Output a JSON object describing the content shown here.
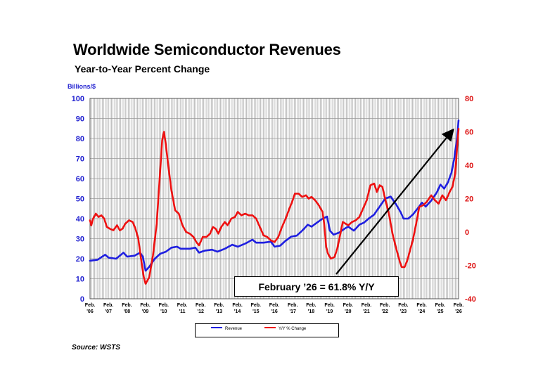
{
  "header": {
    "title": "Worldwide Semiconductor Revenues",
    "subtitle": "Year-to-Year Percent Change",
    "unit": "Billions/$"
  },
  "source": "Source: WSTS",
  "callout": "February ’26 = 61.8% Y/Y",
  "legend": {
    "revenue": "Revenue",
    "yoy": "Y/Y % Change"
  },
  "colors": {
    "revenue": "#1f1fe0",
    "yoy": "#ee1111",
    "grid": "#9a9a9a",
    "left_axis": "#1f1fd0",
    "right_axis": "#dd1111"
  },
  "chart_data": {
    "type": "line",
    "title": "Worldwide Semiconductor Revenues",
    "subtitle": "Year-to-Year Percent Change",
    "ylabel_left": "Billions/$",
    "ylim_left": [
      0,
      100
    ],
    "yticks_left": [
      "0",
      "10",
      "20",
      "30",
      "40",
      "50",
      "60",
      "70",
      "80",
      "90",
      "100"
    ],
    "ylim_right": [
      -40,
      80
    ],
    "yticks_right": [
      "-40",
      "-20",
      "0",
      "20",
      "40",
      "60",
      "80"
    ],
    "x_start": 2006.083,
    "x_end": 2026.083,
    "x_ticks": [
      "Feb.|'06",
      "Feb.|'07",
      "Feb.|'08",
      "Feb.|'09",
      "Feb.|'10",
      "Feb.|'11",
      "Feb.|'12",
      "Feb.|'13",
      "Feb.|'14",
      "Feb.|'15",
      "Feb.|'16",
      "Feb.|'17",
      "Feb.|'18",
      "Feb.|'19",
      "Feb.|'20",
      "Feb.|'21",
      "Feb.|'22",
      "Feb.|'23",
      "Feb.|'24",
      "Feb.|'25",
      "Feb.|'26"
    ],
    "series": [
      {
        "name": "Revenue",
        "axis": "left",
        "points": [
          [
            2006.08,
            19
          ],
          [
            2006.5,
            19.5
          ],
          [
            2006.9,
            22
          ],
          [
            2007.1,
            20.5
          ],
          [
            2007.5,
            20
          ],
          [
            2007.9,
            23
          ],
          [
            2008.1,
            21
          ],
          [
            2008.5,
            21.5
          ],
          [
            2008.8,
            23
          ],
          [
            2008.95,
            21
          ],
          [
            2009.1,
            14
          ],
          [
            2009.3,
            16
          ],
          [
            2009.6,
            20
          ],
          [
            2009.9,
            22.5
          ],
          [
            2010.2,
            23.5
          ],
          [
            2010.5,
            25.5
          ],
          [
            2010.8,
            26
          ],
          [
            2011.0,
            25
          ],
          [
            2011.5,
            25
          ],
          [
            2011.8,
            25.5
          ],
          [
            2012.0,
            23
          ],
          [
            2012.3,
            24
          ],
          [
            2012.7,
            24.5
          ],
          [
            2013.0,
            23.5
          ],
          [
            2013.4,
            25
          ],
          [
            2013.8,
            27
          ],
          [
            2014.1,
            26
          ],
          [
            2014.5,
            27.5
          ],
          [
            2014.9,
            29.5
          ],
          [
            2015.1,
            28
          ],
          [
            2015.5,
            28
          ],
          [
            2015.9,
            28.5
          ],
          [
            2016.1,
            26
          ],
          [
            2016.4,
            26.5
          ],
          [
            2016.7,
            29
          ],
          [
            2017.0,
            31
          ],
          [
            2017.3,
            31.5
          ],
          [
            2017.6,
            34
          ],
          [
            2017.9,
            37
          ],
          [
            2018.1,
            36
          ],
          [
            2018.4,
            38
          ],
          [
            2018.7,
            40
          ],
          [
            2018.95,
            41
          ],
          [
            2019.1,
            34
          ],
          [
            2019.3,
            32
          ],
          [
            2019.6,
            33
          ],
          [
            2019.9,
            35
          ],
          [
            2020.1,
            36
          ],
          [
            2020.4,
            34
          ],
          [
            2020.7,
            37
          ],
          [
            2020.95,
            38
          ],
          [
            2021.2,
            40
          ],
          [
            2021.5,
            42
          ],
          [
            2021.8,
            46
          ],
          [
            2022.1,
            50
          ],
          [
            2022.4,
            51
          ],
          [
            2022.7,
            47
          ],
          [
            2022.95,
            43
          ],
          [
            2023.1,
            40
          ],
          [
            2023.35,
            40
          ],
          [
            2023.6,
            42
          ],
          [
            2023.9,
            45.5
          ],
          [
            2024.1,
            48
          ],
          [
            2024.3,
            46
          ],
          [
            2024.6,
            49
          ],
          [
            2024.9,
            53
          ],
          [
            2025.1,
            57
          ],
          [
            2025.3,
            55
          ],
          [
            2025.5,
            58
          ],
          [
            2025.7,
            63
          ],
          [
            2025.85,
            70
          ],
          [
            2026.0,
            80
          ],
          [
            2026.083,
            89
          ]
        ]
      },
      {
        "name": "Y/Y % Change",
        "axis": "right",
        "points": [
          [
            2006.08,
            7
          ],
          [
            2006.15,
            4
          ],
          [
            2006.25,
            8
          ],
          [
            2006.4,
            11
          ],
          [
            2006.55,
            9
          ],
          [
            2006.7,
            10
          ],
          [
            2006.85,
            8
          ],
          [
            2007.0,
            3
          ],
          [
            2007.15,
            2
          ],
          [
            2007.35,
            1
          ],
          [
            2007.55,
            4
          ],
          [
            2007.7,
            1
          ],
          [
            2007.85,
            2
          ],
          [
            2008.0,
            5
          ],
          [
            2008.2,
            7
          ],
          [
            2008.4,
            6
          ],
          [
            2008.55,
            2
          ],
          [
            2008.7,
            -4
          ],
          [
            2008.85,
            -16
          ],
          [
            2009.0,
            -27
          ],
          [
            2009.1,
            -31
          ],
          [
            2009.3,
            -27
          ],
          [
            2009.5,
            -14
          ],
          [
            2009.7,
            5
          ],
          [
            2009.85,
            30
          ],
          [
            2010.0,
            55
          ],
          [
            2010.1,
            60
          ],
          [
            2010.2,
            52
          ],
          [
            2010.35,
            38
          ],
          [
            2010.5,
            25
          ],
          [
            2010.7,
            13
          ],
          [
            2010.9,
            11
          ],
          [
            2011.1,
            4
          ],
          [
            2011.3,
            0
          ],
          [
            2011.5,
            -1
          ],
          [
            2011.7,
            -3
          ],
          [
            2011.85,
            -6
          ],
          [
            2012.0,
            -8
          ],
          [
            2012.2,
            -3
          ],
          [
            2012.4,
            -3
          ],
          [
            2012.6,
            -1
          ],
          [
            2012.75,
            3
          ],
          [
            2012.9,
            2
          ],
          [
            2013.05,
            -1
          ],
          [
            2013.2,
            3
          ],
          [
            2013.4,
            6
          ],
          [
            2013.55,
            4
          ],
          [
            2013.75,
            8
          ],
          [
            2013.95,
            9
          ],
          [
            2014.1,
            12
          ],
          [
            2014.3,
            10
          ],
          [
            2014.5,
            11
          ],
          [
            2014.7,
            10
          ],
          [
            2014.9,
            10
          ],
          [
            2015.1,
            8
          ],
          [
            2015.3,
            3
          ],
          [
            2015.5,
            -2
          ],
          [
            2015.7,
            -3
          ],
          [
            2015.9,
            -5
          ],
          [
            2016.1,
            -6
          ],
          [
            2016.3,
            -3
          ],
          [
            2016.5,
            3
          ],
          [
            2016.7,
            8
          ],
          [
            2016.9,
            14
          ],
          [
            2017.05,
            18
          ],
          [
            2017.2,
            23
          ],
          [
            2017.4,
            23
          ],
          [
            2017.6,
            21
          ],
          [
            2017.8,
            22
          ],
          [
            2017.95,
            20
          ],
          [
            2018.1,
            21
          ],
          [
            2018.3,
            19
          ],
          [
            2018.5,
            16
          ],
          [
            2018.7,
            12
          ],
          [
            2018.8,
            4
          ],
          [
            2018.9,
            -9
          ],
          [
            2019.0,
            -13
          ],
          [
            2019.15,
            -16
          ],
          [
            2019.35,
            -15
          ],
          [
            2019.5,
            -10
          ],
          [
            2019.65,
            -2
          ],
          [
            2019.8,
            6
          ],
          [
            2019.95,
            5
          ],
          [
            2020.1,
            4
          ],
          [
            2020.3,
            6
          ],
          [
            2020.5,
            7
          ],
          [
            2020.7,
            9
          ],
          [
            2020.9,
            14
          ],
          [
            2021.1,
            19
          ],
          [
            2021.3,
            28
          ],
          [
            2021.5,
            29
          ],
          [
            2021.65,
            24
          ],
          [
            2021.8,
            28
          ],
          [
            2021.95,
            27
          ],
          [
            2022.1,
            20
          ],
          [
            2022.3,
            11
          ],
          [
            2022.5,
            -1
          ],
          [
            2022.7,
            -10
          ],
          [
            2022.9,
            -18
          ],
          [
            2023.0,
            -21
          ],
          [
            2023.15,
            -21
          ],
          [
            2023.3,
            -17
          ],
          [
            2023.45,
            -11
          ],
          [
            2023.6,
            -5
          ],
          [
            2023.8,
            6
          ],
          [
            2023.95,
            15
          ],
          [
            2024.15,
            16
          ],
          [
            2024.35,
            18
          ],
          [
            2024.6,
            22
          ],
          [
            2024.8,
            19
          ],
          [
            2025.0,
            17
          ],
          [
            2025.2,
            22
          ],
          [
            2025.4,
            19
          ],
          [
            2025.6,
            24
          ],
          [
            2025.75,
            27
          ],
          [
            2025.9,
            35
          ],
          [
            2026.0,
            50
          ],
          [
            2026.083,
            61.8
          ]
        ]
      }
    ]
  }
}
